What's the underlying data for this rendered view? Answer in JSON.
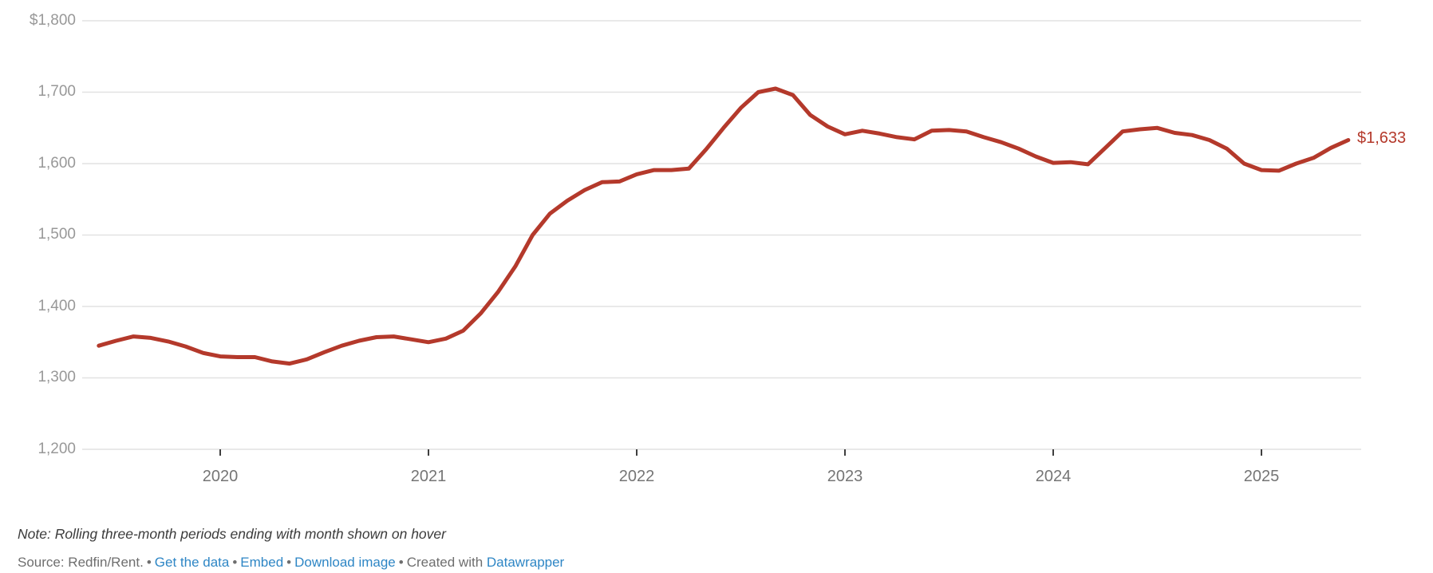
{
  "chart": {
    "end_label": "$1,633"
  },
  "y_axis": {
    "ticks": [
      {
        "label": "$1,800",
        "value": 1800
      },
      {
        "label": "1,700",
        "value": 1700
      },
      {
        "label": "1,600",
        "value": 1600
      },
      {
        "label": "1,500",
        "value": 1500
      },
      {
        "label": "1,400",
        "value": 1400
      },
      {
        "label": "1,300",
        "value": 1300
      },
      {
        "label": "1,200",
        "value": 1200
      }
    ]
  },
  "x_axis": {
    "ticks": [
      {
        "label": "2020",
        "year": 2020
      },
      {
        "label": "2021",
        "year": 2021
      },
      {
        "label": "2022",
        "year": 2022
      },
      {
        "label": "2023",
        "year": 2023
      },
      {
        "label": "2024",
        "year": 2024
      },
      {
        "label": "2025",
        "year": 2025
      }
    ]
  },
  "footer": {
    "note": "Note: Rolling three-month periods ending with month shown on hover",
    "source_label": "Source: Redfin/Rent.",
    "bullet": "•",
    "links": [
      {
        "label": "Get the data"
      },
      {
        "label": "Embed"
      },
      {
        "label": "Download image"
      }
    ],
    "created_with": "Created with",
    "created_link": "Datawrapper"
  },
  "theme": {
    "line_color": "#b4392b",
    "value_label_color": "#b4392b",
    "link_color": "#2e86c5",
    "grid_color": "#e2e2e2",
    "y_label_color": "#989898",
    "x_label_color": "#757575",
    "tick_color": "#3f3f3f",
    "note_color": "#3c3c3c",
    "source_color": "#6e6e6e",
    "background": "#ffffff"
  },
  "chart_data": {
    "type": "line",
    "title": "",
    "xlabel": "",
    "ylabel": "",
    "unit": "$",
    "ylim": [
      1200,
      1800
    ],
    "grid": "horizontal",
    "legend": "none",
    "end_value_label": "$1,633",
    "x": [
      "2019-06",
      "2019-07",
      "2019-08",
      "2019-09",
      "2019-10",
      "2019-11",
      "2019-12",
      "2020-01",
      "2020-02",
      "2020-03",
      "2020-04",
      "2020-05",
      "2020-06",
      "2020-07",
      "2020-08",
      "2020-09",
      "2020-10",
      "2020-11",
      "2020-12",
      "2021-01",
      "2021-02",
      "2021-03",
      "2021-04",
      "2021-05",
      "2021-06",
      "2021-07",
      "2021-08",
      "2021-09",
      "2021-10",
      "2021-11",
      "2021-12",
      "2022-01",
      "2022-02",
      "2022-03",
      "2022-04",
      "2022-05",
      "2022-06",
      "2022-07",
      "2022-08",
      "2022-09",
      "2022-10",
      "2022-11",
      "2022-12",
      "2023-01",
      "2023-02",
      "2023-03",
      "2023-04",
      "2023-05",
      "2023-06",
      "2023-07",
      "2023-08",
      "2023-09",
      "2023-10",
      "2023-11",
      "2023-12",
      "2024-01",
      "2024-02",
      "2024-03",
      "2024-04",
      "2024-05",
      "2024-06",
      "2024-07",
      "2024-08",
      "2024-09",
      "2024-10",
      "2024-11",
      "2024-12",
      "2025-01",
      "2025-02",
      "2025-03",
      "2025-04",
      "2025-05",
      "2025-06"
    ],
    "values": [
      1345,
      1352,
      1358,
      1356,
      1351,
      1344,
      1335,
      1330,
      1329,
      1329,
      1323,
      1320,
      1326,
      1336,
      1345,
      1352,
      1357,
      1358,
      1354,
      1350,
      1355,
      1366,
      1390,
      1420,
      1456,
      1500,
      1530,
      1548,
      1563,
      1574,
      1575,
      1585,
      1591,
      1591,
      1593,
      1620,
      1650,
      1678,
      1700,
      1705,
      1696,
      1668,
      1652,
      1641,
      1646,
      1642,
      1637,
      1634,
      1646,
      1647,
      1645,
      1637,
      1630,
      1621,
      1610,
      1601,
      1602,
      1599,
      1622,
      1645,
      1648,
      1650,
      1643,
      1640,
      1633,
      1621,
      1600,
      1591,
      1590,
      1600,
      1608,
      1622,
      1633
    ]
  }
}
